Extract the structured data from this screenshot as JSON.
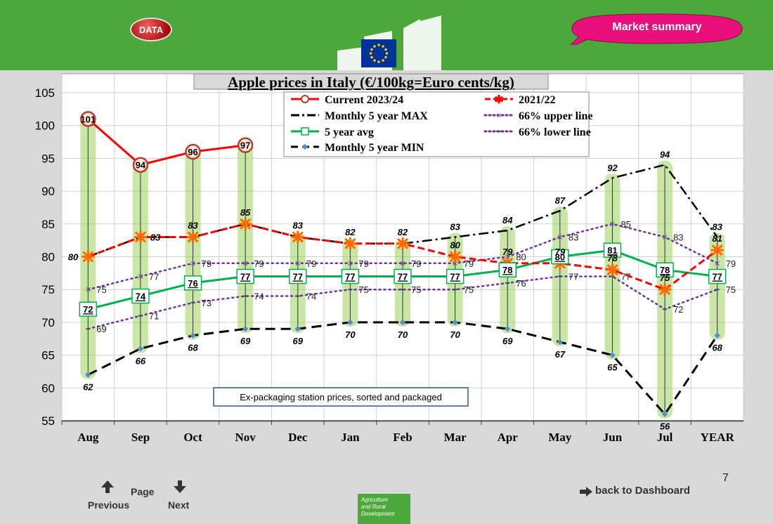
{
  "header": {
    "data_button_label": "DATA",
    "market_summary_label": "Market summary"
  },
  "colors": {
    "header_green": "#4ca83b",
    "current": "#ff0000",
    "prev": "#ff0000",
    "max": "#000000",
    "upper": "#7030a0",
    "avg": "#00b050",
    "lower": "#7030a0",
    "min": "#000000",
    "highlight": "#92d050"
  },
  "chart_data": {
    "type": "line",
    "title": "Apple prices in Italy (€/100kg=Euro cents/kg)",
    "categories": [
      "Aug",
      "Sep",
      "Oct",
      "Nov",
      "Dec",
      "Jan",
      "Feb",
      "Mar",
      "Apr",
      "May",
      "Jun",
      "Jul",
      "YEAR"
    ],
    "ylim": [
      55,
      105
    ],
    "yticks": [
      55,
      60,
      65,
      70,
      75,
      80,
      85,
      90,
      95,
      100,
      105
    ],
    "grid": true,
    "legend_position": "top",
    "annotation": "Ex-packaging station prices, sorted and packaged",
    "series": [
      {
        "name": "Current 2023/24",
        "values": [
          101,
          94,
          96,
          97,
          null,
          null,
          null,
          null,
          null,
          null,
          null,
          null,
          null
        ]
      },
      {
        "name": "2021/22",
        "values": [
          80,
          83,
          83,
          85,
          83,
          82,
          82,
          80,
          79,
          79,
          78,
          75,
          81
        ]
      },
      {
        "name": "Monthly 5 year MAX",
        "values": [
          80,
          83,
          83,
          85,
          83,
          82,
          82,
          83,
          84,
          87,
          92,
          94,
          83
        ]
      },
      {
        "name": "66% upper line",
        "values": [
          75,
          77,
          79,
          79,
          79,
          79,
          79,
          79,
          80,
          83,
          85,
          83,
          79
        ]
      },
      {
        "name": "5 year avg",
        "values": [
          72,
          74,
          76,
          77,
          77,
          77,
          77,
          77,
          78,
          80,
          81,
          78,
          77
        ]
      },
      {
        "name": "66% lower line",
        "values": [
          69,
          71,
          73,
          74,
          74,
          75,
          75,
          75,
          76,
          77,
          77,
          72,
          75
        ]
      },
      {
        "name": "Monthly 5 year MIN",
        "values": [
          62,
          66,
          68,
          69,
          69,
          70,
          70,
          70,
          69,
          67,
          65,
          56,
          68
        ]
      }
    ]
  },
  "footer": {
    "page_number": "7",
    "page_label": "Page",
    "previous_label": "Previous",
    "next_label": "Next",
    "dashboard_label": "back to Dashboard",
    "agri_line1": "Agriculture",
    "agri_line2": "and Rural",
    "agri_line3": "Development"
  }
}
